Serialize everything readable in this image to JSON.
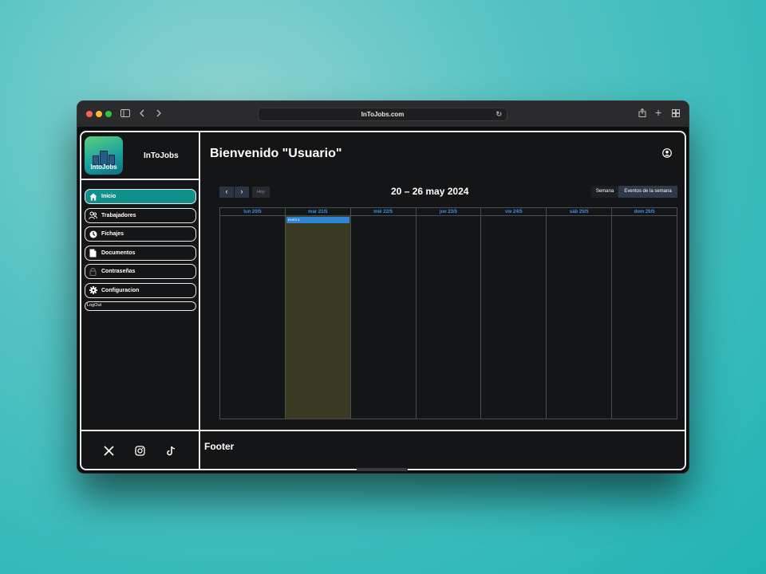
{
  "browser": {
    "url": "InToJobs.com",
    "icons": [
      "sidebar-toggle-icon",
      "back-icon",
      "forward-icon",
      "reload-icon",
      "share-icon",
      "new-tab-icon",
      "tab-overview-icon"
    ]
  },
  "sidebar": {
    "brand": "InToJobs",
    "logo_text": "IntoJobs",
    "items": [
      {
        "label": "Inicio",
        "icon": "home-icon",
        "active": true
      },
      {
        "label": "Trabajadores",
        "icon": "users-icon",
        "active": false
      },
      {
        "label": "Fichajes",
        "icon": "clock-icon",
        "active": false
      },
      {
        "label": "Documentos",
        "icon": "document-icon",
        "active": false
      },
      {
        "label": "Contraseñas",
        "icon": "lock-icon",
        "active": false
      },
      {
        "label": "Configuracion",
        "icon": "gear-icon",
        "active": false
      }
    ],
    "logout": "LogOut",
    "social": [
      "x-icon",
      "instagram-icon",
      "tiktok-icon"
    ]
  },
  "main": {
    "title": "Bienvenido \"Usuario\"",
    "calendar": {
      "prev": "‹",
      "next": "›",
      "today": "Hoy",
      "range": "20 – 26 may 2024",
      "views": [
        "Semana",
        "Eventos de la semana"
      ],
      "days": [
        "lun 20/5",
        "mar 21/5",
        "mié 22/5",
        "jue 23/5",
        "vie 24/5",
        "sáb 25/5",
        "dom 26/5"
      ],
      "today_index": 1,
      "events": [
        {
          "day_index": 1,
          "title": "event 1"
        }
      ]
    }
  },
  "footer": {
    "label": "Footer"
  },
  "colors": {
    "accent": "#11918c",
    "event": "#2f84d6",
    "today": "#3a3a22",
    "day_header": "#3f8fe6"
  }
}
